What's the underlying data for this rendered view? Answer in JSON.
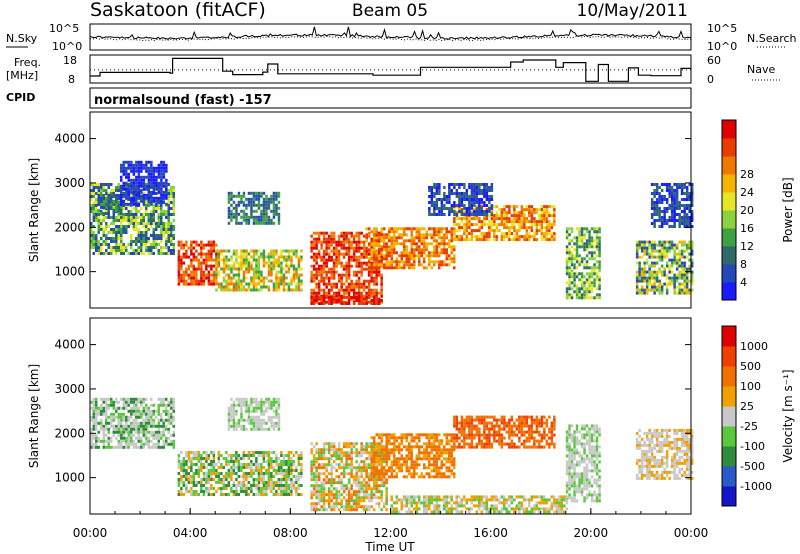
{
  "chart_data": [
    {
      "type": "line",
      "title": "",
      "header": {
        "station": "Saskatoon (fitACF)",
        "beam": "Beam 05",
        "date": "10/May/2011"
      },
      "left_label": "N.Sky",
      "right_label": "N.Search",
      "left_ticks": [
        "10^5",
        "10^0"
      ],
      "right_ticks": [
        "10^5",
        "10^0"
      ],
      "series": [
        {
          "name": "N.Sky",
          "style": "solid"
        },
        {
          "name": "N.Search",
          "style": "dotted"
        }
      ]
    },
    {
      "type": "line",
      "left_label_lines": [
        "Freq.",
        "[MHz]"
      ],
      "right_label": "Nave",
      "left_ticks": [
        18,
        8
      ],
      "right_ticks": [
        60,
        0
      ],
      "series": [
        {
          "name": "Freq.",
          "style": "solid",
          "x": [
            0,
            0.4,
            3.2,
            3.3,
            5.3,
            5.7,
            6.9,
            7.1,
            7.5,
            11.3,
            13.2,
            16.8,
            17.3,
            18.6,
            18.9,
            19.8,
            20.3,
            20.7,
            21.5,
            21.9,
            22.4,
            23.6,
            24
          ],
          "y": [
            10.5,
            11.8,
            11.5,
            16.8,
            12.2,
            11.0,
            11.9,
            14.8,
            11.3,
            10.8,
            13.6,
            15.5,
            16.2,
            13.6,
            15.3,
            8.6,
            14.6,
            8.6,
            13.4,
            10.8,
            10.6,
            13.2,
            12.0
          ]
        },
        {
          "name": "Nave",
          "style": "dotted",
          "value": 28
        }
      ]
    },
    {
      "type": "table",
      "label": "CPID",
      "value": "normalsound (fast) -157"
    },
    {
      "type": "heatmap",
      "ylabel": "Slant Range [km]",
      "y_ticks": [
        1000,
        2000,
        3000,
        4000
      ],
      "ylim": [
        180,
        4600
      ],
      "colorbar": {
        "label": "Power [dB]",
        "ticks": [
          "4",
          "8",
          "12",
          "16",
          "20",
          "24",
          "28"
        ],
        "colors": [
          "#1a1aff",
          "#2448b8",
          "#2f6a6a",
          "#3ea040",
          "#8cd23c",
          "#e6e628",
          "#f4b400",
          "#f07800",
          "#e83c00",
          "#e00000"
        ]
      },
      "regions": [
        {
          "x": [
            0.0,
            3.3
          ],
          "y": [
            1400,
            3000
          ],
          "levels": [
            1,
            2,
            3,
            4,
            5
          ]
        },
        {
          "x": [
            0.3,
            1.2
          ],
          "y": [
            2300,
            2750
          ],
          "levels": [
            1,
            2,
            3
          ]
        },
        {
          "x": [
            1.2,
            3.0
          ],
          "y": [
            2550,
            3500
          ],
          "levels": [
            0,
            1
          ]
        },
        {
          "x": [
            3.5,
            5.0
          ],
          "y": [
            700,
            1700
          ],
          "levels": [
            7,
            8,
            9
          ]
        },
        {
          "x": [
            5.0,
            8.4
          ],
          "y": [
            600,
            1500
          ],
          "levels": [
            3,
            4,
            5,
            6,
            7
          ]
        },
        {
          "x": [
            5.5,
            7.5
          ],
          "y": [
            2100,
            2800
          ],
          "levels": [
            1,
            2,
            3
          ]
        },
        {
          "x": [
            8.8,
            11.6
          ],
          "y": [
            300,
            1900
          ],
          "levels": [
            7,
            8,
            9
          ]
        },
        {
          "x": [
            8.8,
            11.6
          ],
          "y": [
            250,
            450
          ],
          "levels": [
            8,
            9
          ]
        },
        {
          "x": [
            11.0,
            14.5
          ],
          "y": [
            1100,
            2000
          ],
          "levels": [
            6,
            7,
            8
          ]
        },
        {
          "x": [
            14.5,
            18.5
          ],
          "y": [
            1700,
            2500
          ],
          "levels": [
            5,
            6,
            7,
            8
          ]
        },
        {
          "x": [
            13.5,
            16.0
          ],
          "y": [
            2300,
            3000
          ],
          "levels": [
            0,
            1,
            2
          ]
        },
        {
          "x": [
            19.0,
            20.3
          ],
          "y": [
            400,
            2000
          ],
          "levels": [
            2,
            3,
            4,
            5
          ]
        },
        {
          "x": [
            21.8,
            24.0
          ],
          "y": [
            500,
            1700
          ],
          "levels": [
            1,
            2,
            3,
            4,
            5,
            6
          ]
        },
        {
          "x": [
            22.4,
            24.0
          ],
          "y": [
            2000,
            3000
          ],
          "levels": [
            0,
            1,
            2
          ]
        }
      ]
    },
    {
      "type": "heatmap",
      "ylabel": "Slant Range [km]",
      "y_ticks": [
        1000,
        2000,
        3000,
        4000
      ],
      "ylim": [
        180,
        4600
      ],
      "xlabel": "Time UT",
      "x_ticks": [
        "00:00",
        "04:00",
        "08:00",
        "12:00",
        "16:00",
        "20:00",
        "00:00"
      ],
      "xlim": [
        0,
        24
      ],
      "colorbar": {
        "label": "Velocity [m s⁻¹]",
        "ticks": [
          "1000",
          "500",
          "100",
          "25",
          "-25",
          "-100",
          "-500",
          "-1000"
        ],
        "colors": [
          "#1414c8",
          "#2a5ac8",
          "#2e8c3c",
          "#5ac83c",
          "#c8c8c8",
          "#f0a000",
          "#f07000",
          "#f04000",
          "#e00000"
        ]
      },
      "regions": [
        {
          "x": [
            0.0,
            3.3
          ],
          "y": [
            1700,
            2800
          ],
          "levels": [
            4,
            4,
            3,
            2
          ]
        },
        {
          "x": [
            3.5,
            8.4
          ],
          "y": [
            600,
            1600
          ],
          "levels": [
            4,
            3,
            2,
            5
          ]
        },
        {
          "x": [
            5.5,
            7.5
          ],
          "y": [
            2100,
            2800
          ],
          "levels": [
            4,
            4,
            3
          ]
        },
        {
          "x": [
            8.8,
            11.8
          ],
          "y": [
            300,
            1800
          ],
          "levels": [
            5,
            6,
            4,
            3
          ]
        },
        {
          "x": [
            11.2,
            14.5
          ],
          "y": [
            1000,
            2000
          ],
          "levels": [
            5,
            6,
            6
          ]
        },
        {
          "x": [
            14.5,
            18.5
          ],
          "y": [
            1700,
            2400
          ],
          "levels": [
            6,
            7,
            6
          ]
        },
        {
          "x": [
            19.0,
            20.3
          ],
          "y": [
            500,
            2200
          ],
          "levels": [
            4,
            4,
            3
          ]
        },
        {
          "x": [
            21.8,
            24.0
          ],
          "y": [
            1000,
            2100
          ],
          "levels": [
            4,
            4,
            5
          ]
        },
        {
          "x": [
            12.0,
            19.0
          ],
          "y": [
            250,
            600
          ],
          "levels": [
            5,
            4,
            3
          ]
        }
      ]
    }
  ]
}
